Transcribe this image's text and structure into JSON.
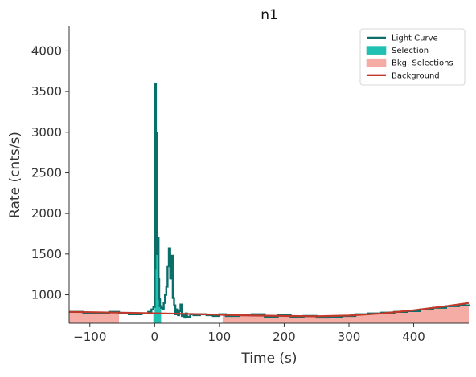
{
  "chart_data": {
    "type": "line",
    "title": "n1",
    "xlabel": "Time (s)",
    "ylabel": "Rate (cnts/s)",
    "xlim": [
      -132,
      485
    ],
    "ylim": [
      650,
      4300
    ],
    "x_ticks": [
      -100,
      0,
      100,
      200,
      300,
      400
    ],
    "x_tick_labels": [
      "−100",
      "0",
      "100",
      "200",
      "300",
      "400"
    ],
    "y_ticks": [
      1000,
      1500,
      2000,
      2500,
      3000,
      3500,
      4000
    ],
    "y_tick_labels": [
      "1000",
      "1500",
      "2000",
      "2500",
      "3000",
      "3500",
      "4000"
    ],
    "grid": false,
    "legend": {
      "placement": "top-right",
      "entries": [
        {
          "label": "Light Curve",
          "kind": "line",
          "color": "#0b6e69"
        },
        {
          "label": "Selection",
          "kind": "patch",
          "color": "#20c0b2"
        },
        {
          "label": "Bkg. Selections",
          "kind": "patch",
          "color": "#f4aca4"
        },
        {
          "label": "Background",
          "kind": "line",
          "color": "#c0392b"
        }
      ]
    },
    "colors": {
      "light_curve": "#0b6e69",
      "selection": "#20c0b2",
      "bkg_selection": "#f4aca4",
      "background": "#c0392b",
      "axes": "#333333"
    },
    "light_curve": {
      "name": "Light Curve",
      "x": [
        -132,
        -110,
        -90,
        -70,
        -55,
        -40,
        -20,
        -10,
        -5,
        -2,
        0,
        1,
        2,
        3,
        4,
        5,
        6,
        7,
        8,
        10,
        12,
        14,
        16,
        18,
        20,
        22,
        24,
        26,
        28,
        30,
        32,
        34,
        36,
        38,
        40,
        42,
        44,
        46,
        48,
        50,
        55,
        60,
        70,
        80,
        90,
        100,
        110,
        130,
        150,
        170,
        190,
        210,
        230,
        250,
        270,
        290,
        310,
        330,
        350,
        370,
        390,
        410,
        430,
        450,
        470,
        485
      ],
      "y": [
        790,
        780,
        770,
        790,
        770,
        760,
        770,
        790,
        820,
        850,
        1330,
        3590,
        1900,
        2990,
        1500,
        1700,
        1200,
        950,
        860,
        840,
        830,
        900,
        1000,
        1100,
        1350,
        1570,
        1200,
        1480,
        960,
        870,
        760,
        820,
        750,
        800,
        880,
        740,
        760,
        720,
        770,
        730,
        760,
        750,
        760,
        750,
        740,
        760,
        740,
        750,
        760,
        730,
        750,
        730,
        740,
        720,
        730,
        740,
        760,
        770,
        780,
        790,
        800,
        820,
        840,
        860,
        870,
        860
      ]
    },
    "selection": {
      "name": "Selection",
      "x": [
        -2,
        0,
        2,
        4,
        6,
        8,
        10
      ],
      "y": [
        780,
        1330,
        1900,
        1500,
        1200,
        950,
        860
      ]
    },
    "bkg_selections": [
      {
        "x": [
          -132,
          -100,
          -55
        ],
        "y": [
          790,
          780,
          770
        ]
      },
      {
        "x": [
          105,
          200,
          300,
          400,
          485
        ],
        "y": [
          750,
          740,
          750,
          820,
          880
        ]
      }
    ],
    "background": {
      "name": "Background",
      "x": [
        -132,
        -50,
        50,
        150,
        250,
        300,
        350,
        400,
        450,
        485
      ],
      "y": [
        790,
        780,
        765,
        745,
        735,
        745,
        770,
        810,
        860,
        900
      ]
    }
  }
}
